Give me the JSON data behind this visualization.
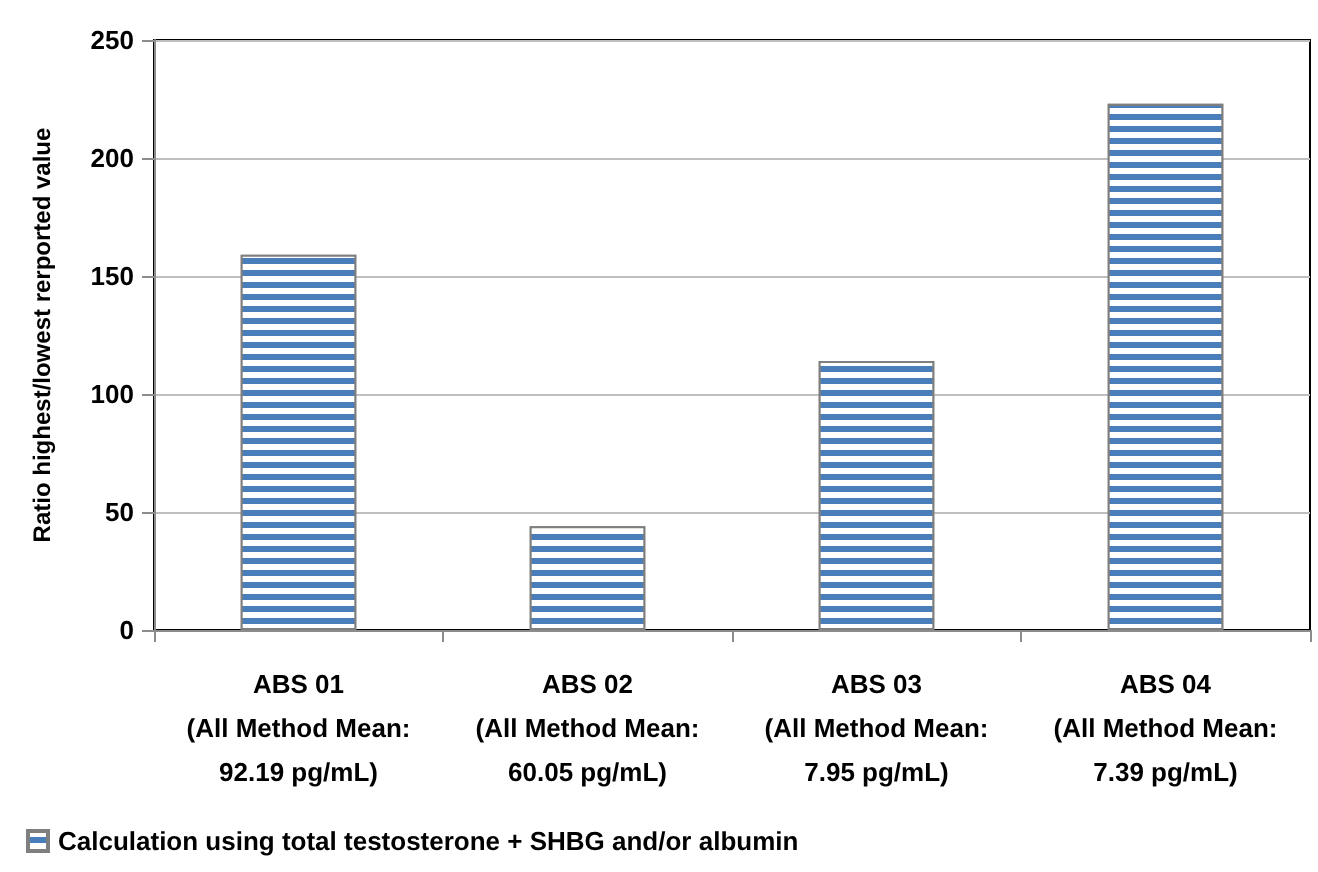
{
  "chart_data": {
    "type": "bar",
    "ylabel": "Ratio highest/lowest rerported value",
    "categories": [
      "ABS 01\n(All Method Mean:\n92.19 pg/mL)",
      "ABS 02\n(All Method Mean:\n60.05 pg/mL)",
      "ABS 03\n(All Method Mean:\n7.95 pg/mL)",
      "ABS 04\n(All Method Mean:\n7.39 pg/mL)"
    ],
    "series": [
      {
        "name": "Calculation using total testosterone + SHBG and/or albumin",
        "color": "#4a7ebb",
        "values": [
          159,
          44,
          114,
          223
        ]
      }
    ],
    "ylim": [
      0,
      250
    ],
    "yticks": [
      0,
      50,
      100,
      150,
      200,
      250
    ],
    "grid": "y",
    "legend": "bottom left"
  }
}
